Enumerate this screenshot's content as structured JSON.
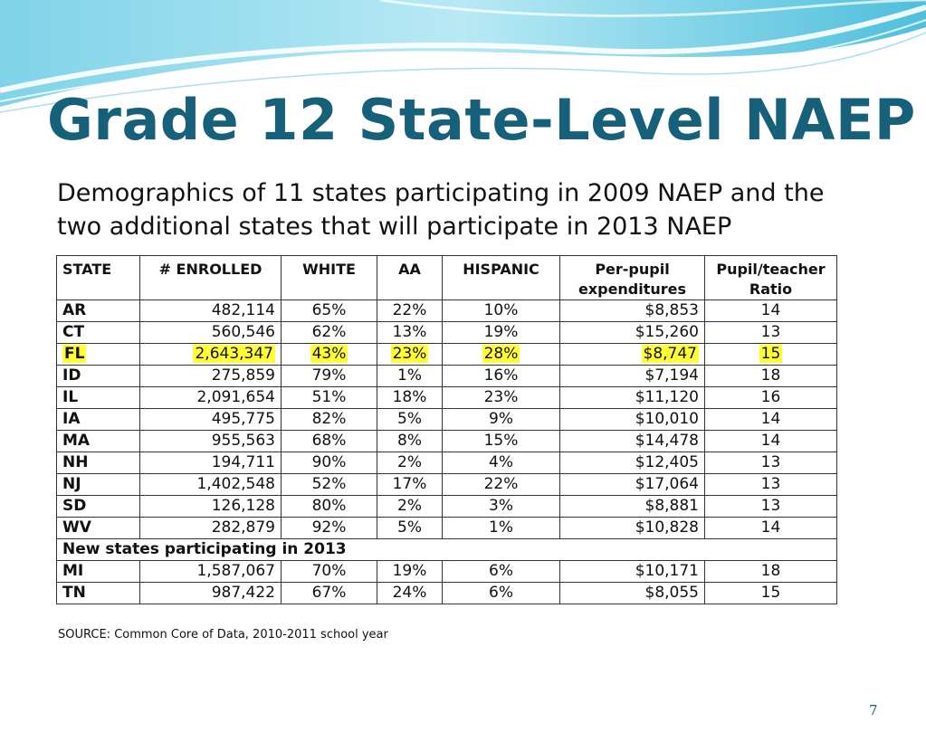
{
  "title": "Grade 12 State-Level NAEP",
  "subtitle": "Demographics of 11 states participating in 2009 NAEP and the two additional states that will participate in 2013 NAEP",
  "table": {
    "headers": [
      "STATE",
      "# ENROLLED",
      "WHITE",
      "AA",
      "HISPANIC",
      "Per-pupil expenditures",
      "Pupil/teacher Ratio"
    ],
    "rows": [
      {
        "state": "AR",
        "enrolled": "482,114",
        "white": "65%",
        "aa": "22%",
        "hispanic": "10%",
        "expend": "$8,853",
        "ratio": "14"
      },
      {
        "state": "CT",
        "enrolled": "560,546",
        "white": "62%",
        "aa": "13%",
        "hispanic": "19%",
        "expend": "$15,260",
        "ratio": "13"
      },
      {
        "state": "FL",
        "enrolled": "2,643,347",
        "white": "43%",
        "aa": "23%",
        "hispanic": "28%",
        "expend": "$8,747",
        "ratio": "15"
      },
      {
        "state": "ID",
        "enrolled": "275,859",
        "white": "79%",
        "aa": "1%",
        "hispanic": "16%",
        "expend": "$7,194",
        "ratio": "18"
      },
      {
        "state": "IL",
        "enrolled": "2,091,654",
        "white": "51%",
        "aa": "18%",
        "hispanic": "23%",
        "expend": "$11,120",
        "ratio": "16"
      },
      {
        "state": "IA",
        "enrolled": "495,775",
        "white": "82%",
        "aa": "5%",
        "hispanic": "9%",
        "expend": "$10,010",
        "ratio": "14"
      },
      {
        "state": "MA",
        "enrolled": "955,563",
        "white": "68%",
        "aa": "8%",
        "hispanic": "15%",
        "expend": "$14,478",
        "ratio": "14"
      },
      {
        "state": "NH",
        "enrolled": "194,711",
        "white": "90%",
        "aa": "2%",
        "hispanic": "4%",
        "expend": "$12,405",
        "ratio": "13"
      },
      {
        "state": "NJ",
        "enrolled": "1,402,548",
        "white": "52%",
        "aa": "17%",
        "hispanic": "22%",
        "expend": "$17,064",
        "ratio": "13"
      },
      {
        "state": "SD",
        "enrolled": "126,128",
        "white": "80%",
        "aa": "2%",
        "hispanic": "3%",
        "expend": "$8,881",
        "ratio": "13"
      },
      {
        "state": "WV",
        "enrolled": "282,879",
        "white": "92%",
        "aa": "5%",
        "hispanic": "1%",
        "expend": "$10,828",
        "ratio": "14"
      }
    ],
    "subheader": "New states participating in 2013",
    "new_rows": [
      {
        "state": "MI",
        "enrolled": "1,587,067",
        "white": "70%",
        "aa": "19%",
        "hispanic": "6%",
        "expend": "$10,171",
        "ratio": "18"
      },
      {
        "state": "TN",
        "enrolled": "987,422",
        "white": "67%",
        "aa": "24%",
        "hispanic": "6%",
        "expend": "$8,055",
        "ratio": "15"
      }
    ],
    "highlighted_state": "FL",
    "highlight_color": "#ffff33"
  },
  "source": "SOURCE: Common Core of Data, 2010-2011 school year",
  "page_number": "7",
  "colors": {
    "title": "#17607a",
    "wave_light": "#c9eef7",
    "wave_mid": "#5cc6e0"
  }
}
